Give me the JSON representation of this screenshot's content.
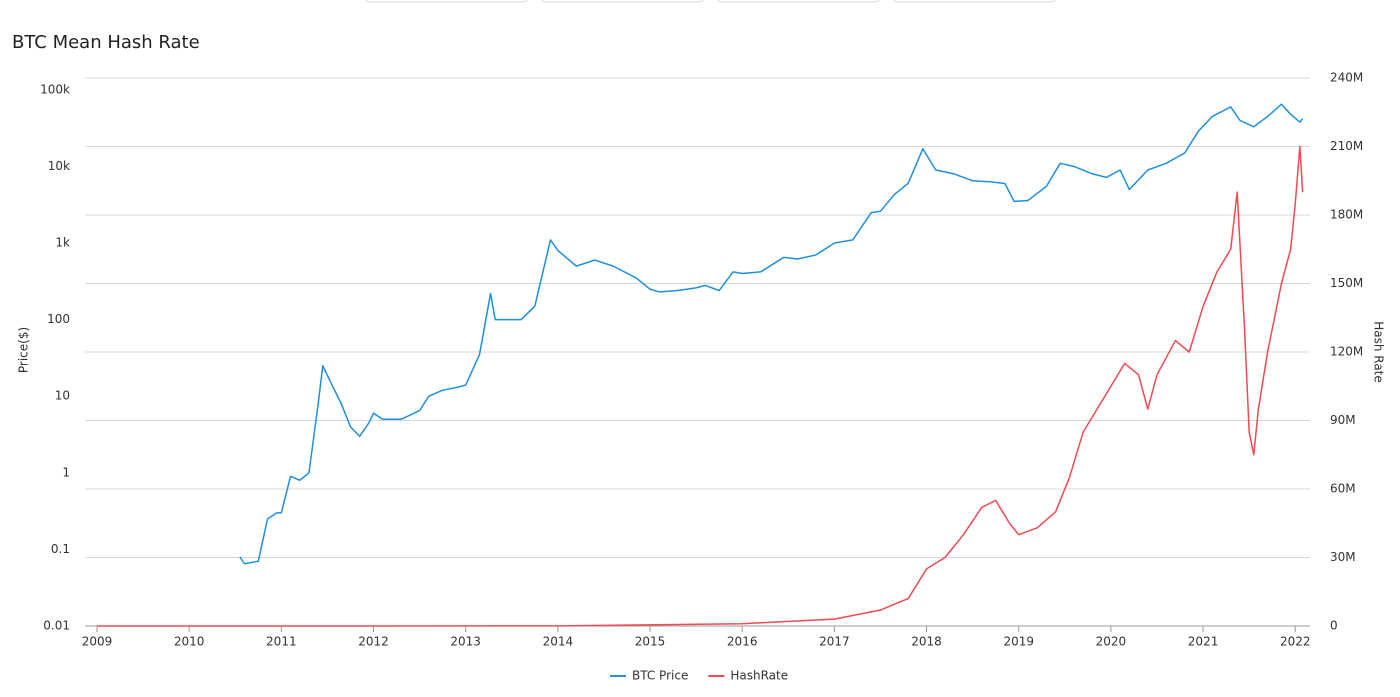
{
  "chart_data": {
    "type": "line",
    "title": "BTC Mean Hash Rate",
    "ylabel": "Price($)",
    "y2label": "Hash Rate",
    "log_y": true,
    "grid": true,
    "legend": "bottom",
    "xlim": [
      2008.87,
      2022.16
    ],
    "xticks": [
      2009,
      2010,
      2011,
      2012,
      2013,
      2014,
      2015,
      2016,
      2017,
      2018,
      2019,
      2020,
      2021,
      2022
    ],
    "ylim": [
      0.01,
      143000
    ],
    "yticks": [
      0.01,
      0.1,
      1,
      10,
      100,
      {
        "value": 1000,
        "label": "1k"
      },
      {
        "value": 10000,
        "label": "10k"
      },
      {
        "value": 100000,
        "label": "100k"
      }
    ],
    "y2lim": [
      0,
      240000000
    ],
    "y2ticks": [
      {
        "value": 0,
        "label": "0"
      },
      {
        "value": 30000000,
        "label": "30M"
      },
      {
        "value": 60000000,
        "label": "60M"
      },
      {
        "value": 90000000,
        "label": "90M"
      },
      {
        "value": 120000000,
        "label": "120M"
      },
      {
        "value": 150000000,
        "label": "150M"
      },
      {
        "value": 180000000,
        "label": "180M"
      },
      {
        "value": 210000000,
        "label": "210M"
      },
      {
        "value": 240000000,
        "label": "240M"
      }
    ],
    "series": [
      {
        "name": "BTC Price",
        "color": "#1f8fe0",
        "x": [
          2010.55,
          2010.6,
          2010.75,
          2010.85,
          2010.95,
          2011.0,
          2011.1,
          2011.2,
          2011.3,
          2011.4,
          2011.45,
          2011.55,
          2011.65,
          2011.75,
          2011.85,
          2011.95,
          2012.0,
          2012.1,
          2012.3,
          2012.5,
          2012.6,
          2012.75,
          2012.9,
          2013.0,
          2013.15,
          2013.27,
          2013.32,
          2013.45,
          2013.6,
          2013.75,
          2013.92,
          2014.0,
          2014.2,
          2014.4,
          2014.6,
          2014.85,
          2015.0,
          2015.1,
          2015.3,
          2015.5,
          2015.6,
          2015.75,
          2015.9,
          2016.0,
          2016.2,
          2016.45,
          2016.6,
          2016.8,
          2017.0,
          2017.2,
          2017.4,
          2017.5,
          2017.65,
          2017.8,
          2017.96,
          2018.1,
          2018.3,
          2018.5,
          2018.7,
          2018.85,
          2018.95,
          2019.1,
          2019.3,
          2019.45,
          2019.6,
          2019.8,
          2019.95,
          2020.1,
          2020.2,
          2020.4,
          2020.6,
          2020.8,
          2020.95,
          2021.1,
          2021.3,
          2021.4,
          2021.55,
          2021.7,
          2021.85,
          2021.95,
          2022.05,
          2022.08
        ],
        "values": [
          0.08,
          0.065,
          0.07,
          0.25,
          0.3,
          0.3,
          0.9,
          0.8,
          1,
          8,
          25,
          14,
          8,
          4,
          3,
          4.5,
          6,
          5,
          5,
          6.5,
          10,
          12,
          13,
          14,
          35,
          220,
          100,
          100,
          100,
          150,
          1100,
          800,
          500,
          600,
          500,
          350,
          250,
          230,
          240,
          260,
          280,
          240,
          420,
          400,
          420,
          650,
          620,
          700,
          1000,
          1100,
          2500,
          2600,
          4300,
          6000,
          17000,
          9000,
          8000,
          6500,
          6300,
          6000,
          3500,
          3600,
          5500,
          11000,
          10000,
          8000,
          7200,
          9000,
          5000,
          9000,
          11000,
          15000,
          29000,
          45000,
          60000,
          40000,
          33000,
          45000,
          65000,
          48000,
          38000,
          42000
        ]
      },
      {
        "name": "HashRate",
        "color": "#f24952",
        "axis": "y2",
        "x": [
          2009.0,
          2012.0,
          2014.0,
          2016.0,
          2016.5,
          2017.0,
          2017.5,
          2017.8,
          2018.0,
          2018.2,
          2018.4,
          2018.6,
          2018.75,
          2018.9,
          2019.0,
          2019.2,
          2019.4,
          2019.55,
          2019.7,
          2019.85,
          2020.0,
          2020.15,
          2020.3,
          2020.4,
          2020.5,
          2020.7,
          2020.85,
          2021.0,
          2021.15,
          2021.3,
          2021.37,
          2021.45,
          2021.5,
          2021.55,
          2021.6,
          2021.7,
          2021.85,
          2021.95,
          2022.0,
          2022.05,
          2022.08
        ],
        "values": [
          0,
          10000,
          50000,
          1000000,
          2000000,
          3000000,
          7000000,
          12000000,
          25000000,
          30000000,
          40000000,
          52000000,
          55000000,
          45000000,
          40000000,
          43000000,
          50000000,
          65000000,
          85000000,
          95000000,
          105000000,
          115000000,
          110000000,
          95000000,
          110000000,
          125000000,
          120000000,
          140000000,
          155000000,
          165000000,
          190000000,
          130000000,
          85000000,
          75000000,
          95000000,
          120000000,
          150000000,
          165000000,
          185000000,
          210000000,
          190000000
        ]
      }
    ]
  }
}
